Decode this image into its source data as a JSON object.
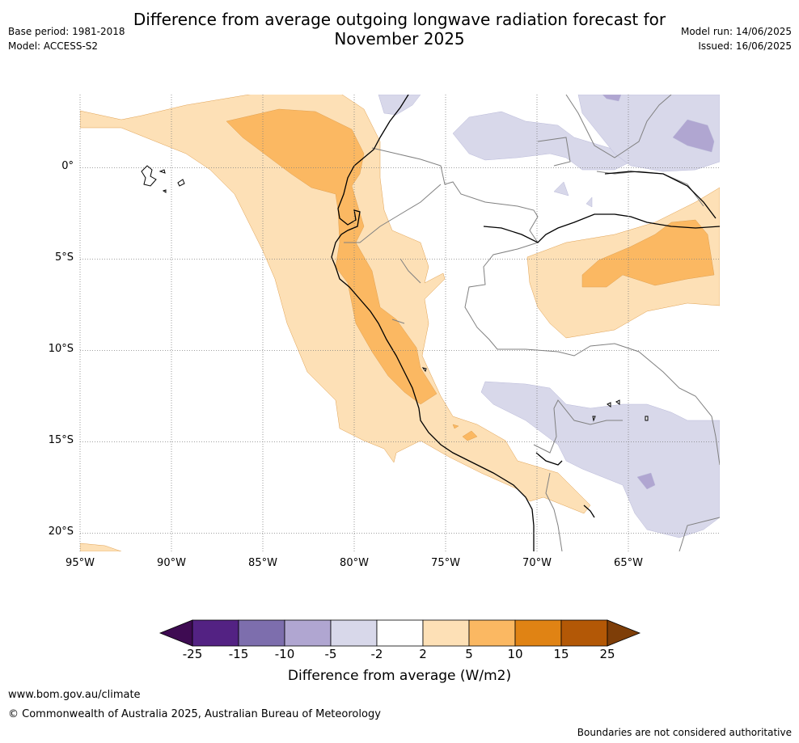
{
  "title_line1": "Difference from average outgoing longwave radiation forecast for",
  "title_line2": "November 2025",
  "base_period": "Base period: 1981-2018",
  "model": "Model: ACCESS-S2",
  "model_run": "Model run: 14/06/2025",
  "issued": "Issued: 16/06/2025",
  "map": {
    "lon_range": [
      -95,
      -60
    ],
    "lat_range": [
      -21,
      4
    ],
    "lat_labels": [
      "0°",
      "5°S",
      "10°S",
      "15°S",
      "20°S"
    ],
    "lon_labels": [
      "95°W",
      "90°W",
      "85°W",
      "80°W",
      "75°W",
      "70°W",
      "65°W"
    ],
    "colors": {
      "pos_2_5": "#fde0b6",
      "pos_5_10": "#fbb862",
      "neg_2_5": "#d8d8ea",
      "neg_5_10": "#b0a6d1"
    }
  },
  "colorbar": {
    "ticks": [
      "-25",
      "-15",
      "-10",
      "-5",
      "-2",
      "2",
      "5",
      "10",
      "15",
      "25"
    ],
    "colors": [
      "#3e0b52",
      "#532283",
      "#7d6ead",
      "#b0a6d1",
      "#d8d8ea",
      "#ffffff",
      "#fde0b6",
      "#fbb862",
      "#e08314",
      "#b35806",
      "#7e3e08"
    ],
    "label": "Difference from average (W/m2)"
  },
  "footer": {
    "url": "www.bom.gov.au/climate",
    "copyright": "© Commonwealth of Australia 2025, Australian Bureau of Meteorology",
    "disclaimer": "Boundaries are not considered authoritative"
  }
}
